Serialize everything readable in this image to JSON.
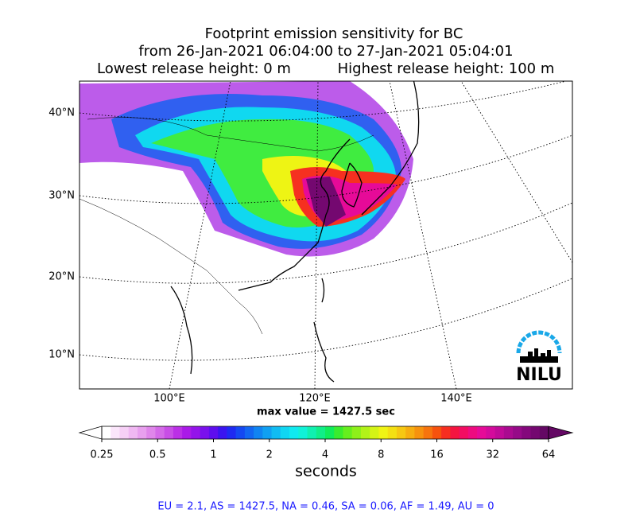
{
  "title": {
    "line1": "Footprint emission sensitivity for BC",
    "line2": "from 26-Jan-2021 06:04:00 to 27-Jan-2021 05:04:01",
    "line3_left": "Lowest release height: 0 m",
    "line3_right": "Highest release height: 100 m"
  },
  "map": {
    "lat_labels": [
      "40°N",
      "30°N",
      "20°N",
      "10°N"
    ],
    "lon_labels": [
      "100°E",
      "120°E",
      "140°E"
    ],
    "max_value_label": "max value = 1427.5 sec",
    "logo": "NILU"
  },
  "colorbar": {
    "ticks": [
      0.25,
      0.5,
      1,
      2,
      4,
      8,
      16,
      32,
      64
    ],
    "label": "seconds",
    "colors": [
      "#ffffff",
      "#fbe6fb",
      "#f6d0f6",
      "#f0b8f2",
      "#e8a0ee",
      "#df86ea",
      "#d46ae8",
      "#c84ee6",
      "#bb30e6",
      "#aa1ae8",
      "#9414ea",
      "#7a10ec",
      "#5e0eee",
      "#3a14f0",
      "#1e2af2",
      "#1448f2",
      "#1266f2",
      "#1084f2",
      "#10a0f2",
      "#10bcf2",
      "#10d6f2",
      "#10eaf0",
      "#10f2d8",
      "#10f0b0",
      "#10ee88",
      "#10ec5a",
      "#3aec2e",
      "#66ee1e",
      "#8ef01a",
      "#b2f218",
      "#d4f416",
      "#f0f414",
      "#f4e012",
      "#f6c812",
      "#f6ae10",
      "#f6920e",
      "#f6740e",
      "#f6520e",
      "#f62e20",
      "#f41440",
      "#f20c62",
      "#ee0a80",
      "#e60a98",
      "#d40a9c",
      "#c00a98",
      "#aa0a90",
      "#960a88",
      "#84087c",
      "#740870",
      "#640864"
    ]
  },
  "footer": "EU = 2.1,  AS = 1427.5,  NA = 0.46,  SA = 0.06,  AF = 1.49,  AU = 0"
}
